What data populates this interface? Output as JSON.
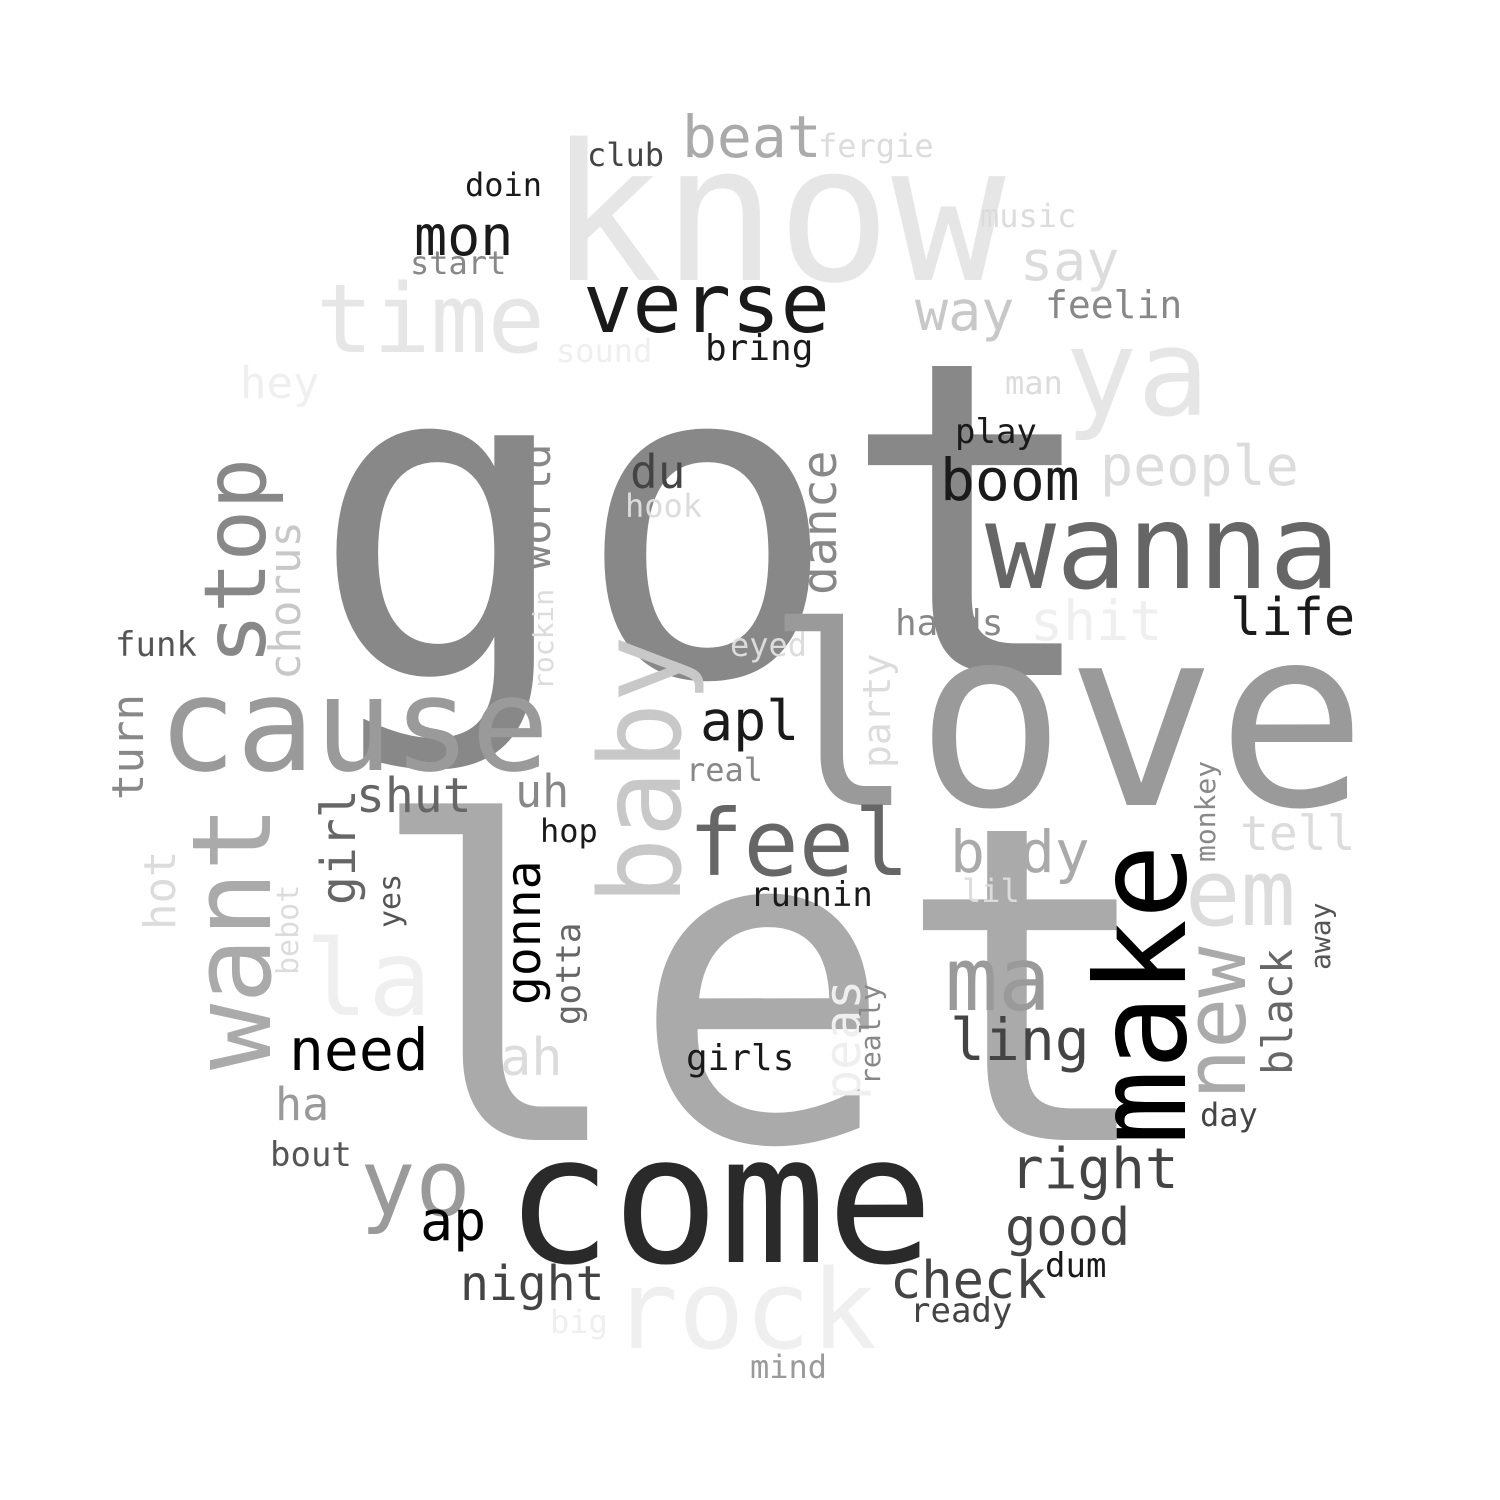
{
  "colors": {
    "black": "#000000",
    "near_black": "#1a1a1a",
    "dark": "#2a2a2a",
    "dark_gray": "#444444",
    "mid_dark": "#555555",
    "gray": "#666666",
    "mid_gray": "#888888",
    "gray_light": "#9a9a9a",
    "silver": "#aaaaaa",
    "light": "#c8c8c8",
    "lighter": "#dcdcdc",
    "pale": "#e6e6e6",
    "paler": "#efefef"
  },
  "words": [
    {
      "text": "got",
      "color": "mid_gray"
    },
    {
      "text": "let",
      "color": "silver"
    },
    {
      "text": "love",
      "color": "gray_light"
    },
    {
      "text": "know",
      "color": "pale"
    },
    {
      "text": "come",
      "color": "dark"
    },
    {
      "text": "cause",
      "color": "gray_light"
    },
    {
      "text": "make",
      "color": "black"
    },
    {
      "text": "wanna",
      "color": "gray"
    },
    {
      "text": "ya",
      "color": "pale"
    },
    {
      "text": "time",
      "color": "pale"
    },
    {
      "text": "want",
      "color": "silver"
    },
    {
      "text": "baby",
      "color": "light"
    },
    {
      "text": "verse",
      "color": "near_black"
    },
    {
      "text": "rock",
      "color": "paler"
    },
    {
      "text": "la",
      "color": "paler"
    },
    {
      "text": "stop",
      "color": "mid_gray"
    },
    {
      "text": "feel",
      "color": "gray"
    },
    {
      "text": "yo",
      "color": "gray_light"
    },
    {
      "text": "em",
      "color": "lighter"
    },
    {
      "text": "new",
      "color": "silver"
    },
    {
      "text": "ma",
      "color": "gray_light"
    },
    {
      "text": "beat",
      "color": "silver"
    },
    {
      "text": "right",
      "color": "dark_gray"
    },
    {
      "text": "need",
      "color": "black"
    },
    {
      "text": "boom",
      "color": "near_black"
    },
    {
      "text": "body",
      "color": "silver"
    },
    {
      "text": "check",
      "color": "dark_gray"
    },
    {
      "text": "good",
      "color": "dark_gray"
    },
    {
      "text": "ling",
      "color": "dark_gray"
    },
    {
      "text": "night",
      "color": "dark_gray"
    },
    {
      "text": "mon",
      "color": "near_black"
    },
    {
      "text": "dance",
      "color": "mid_gray"
    },
    {
      "text": "people",
      "color": "lighter"
    },
    {
      "text": "say",
      "color": "lighter"
    },
    {
      "text": "way",
      "color": "light"
    },
    {
      "text": "apl",
      "color": "near_black"
    },
    {
      "text": "ap",
      "color": "black"
    },
    {
      "text": "gonna",
      "color": "black"
    },
    {
      "text": "life",
      "color": "near_black"
    },
    {
      "text": "chorus",
      "color": "light"
    },
    {
      "text": "du",
      "color": "dark_gray"
    },
    {
      "text": "tell",
      "color": "lighter"
    },
    {
      "text": "shit",
      "color": "paler"
    },
    {
      "text": "ah",
      "color": "lighter"
    },
    {
      "text": "shut",
      "color": "gray"
    },
    {
      "text": "girl",
      "color": "gray"
    },
    {
      "text": "world",
      "color": "mid_gray"
    },
    {
      "text": "black",
      "color": "gray"
    },
    {
      "text": "peas",
      "color": "paler"
    },
    {
      "text": "uh",
      "color": "mid_gray"
    },
    {
      "text": "hey",
      "color": "paler"
    },
    {
      "text": "turn",
      "color": "mid_gray"
    },
    {
      "text": "ha",
      "color": "gray_light"
    },
    {
      "text": "feelin",
      "color": "mid_gray"
    },
    {
      "text": "hot",
      "color": "lighter"
    },
    {
      "text": "party",
      "color": "lighter"
    },
    {
      "text": "hands",
      "color": "mid_gray"
    },
    {
      "text": "girls",
      "color": "near_black"
    },
    {
      "text": "gotta",
      "color": "gray"
    },
    {
      "text": "runnin",
      "color": "near_black"
    },
    {
      "text": "bring",
      "color": "near_black"
    },
    {
      "text": "play",
      "color": "near_black"
    },
    {
      "text": "dum",
      "color": "near_black"
    },
    {
      "text": "ready",
      "color": "dark_gray"
    },
    {
      "text": "doin",
      "color": "near_black"
    },
    {
      "text": "club",
      "color": "dark_gray"
    },
    {
      "text": "funk",
      "color": "mid_dark"
    },
    {
      "text": "bout",
      "color": "mid_dark"
    },
    {
      "text": "real",
      "color": "mid_gray"
    },
    {
      "text": "hop",
      "color": "near_black"
    },
    {
      "text": "start",
      "color": "mid_gray"
    },
    {
      "text": "sound",
      "color": "paler"
    },
    {
      "text": "hook",
      "color": "lighter"
    },
    {
      "text": "eyed",
      "color": "lighter"
    },
    {
      "text": "rockin",
      "color": "lighter"
    },
    {
      "text": "lil",
      "color": "lighter"
    },
    {
      "text": "fergie",
      "color": "lighter"
    },
    {
      "text": "music",
      "color": "lighter"
    },
    {
      "text": "man",
      "color": "lighter"
    },
    {
      "text": "big",
      "color": "paler"
    },
    {
      "text": "mind",
      "color": "gray_light"
    },
    {
      "text": "yes",
      "color": "mid_dark"
    },
    {
      "text": "bebot",
      "color": "lighter"
    },
    {
      "text": "monkey",
      "color": "mid_gray"
    },
    {
      "text": "away",
      "color": "mid_dark"
    },
    {
      "text": "really",
      "color": "mid_gray"
    },
    {
      "text": "day",
      "color": "dark_gray"
    }
  ]
}
